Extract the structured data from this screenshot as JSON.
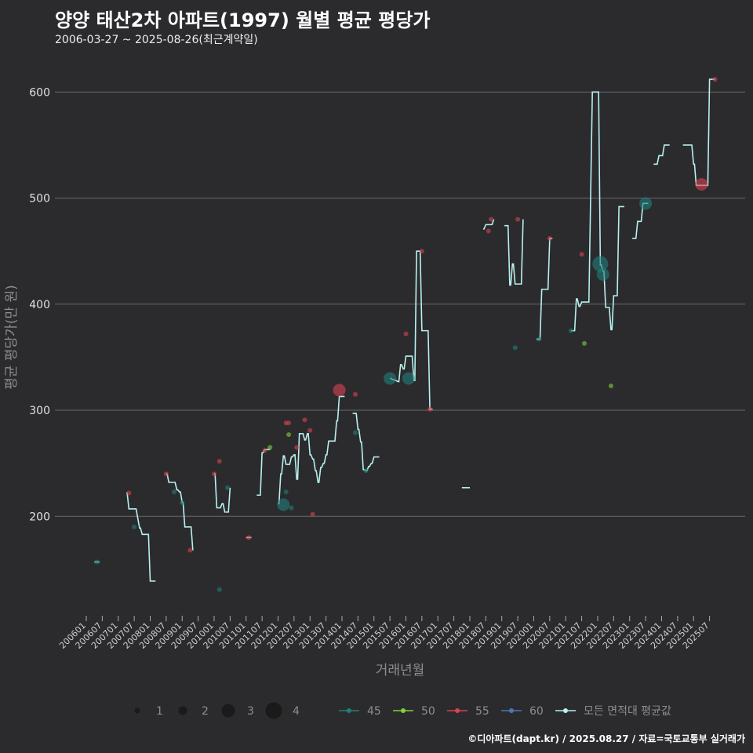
{
  "title": "양양 태산2차 아파트(1997) 월별 평균 평당가",
  "subtitle": "2006-03-27 ~ 2025-08-26(최근계약일)",
  "caption": "©디아파트(dapt.kr) / 2025.08.27 / 자료=국토교통부 실거래가",
  "colors": {
    "background": "#2b2b2d",
    "grid": "#6a6a6a",
    "s45": "#1f7f7a",
    "s50": "#7fcf3f",
    "s55": "#d9424f",
    "s60": "#4a78b5",
    "avg": "#b8f0f0"
  },
  "chart_data": {
    "type": "line",
    "xlabel": "거래년월",
    "ylabel": "평균 평당가(만 원)",
    "ylim": [
      110,
      635
    ],
    "yticks": [
      200,
      300,
      400,
      500,
      600
    ],
    "x_start": "2006-01",
    "x_end": "2025-08",
    "x_tick_labels": [
      "200601",
      "200607",
      "200701",
      "200707",
      "200801",
      "200807",
      "200901",
      "200907",
      "201001",
      "201007",
      "201101",
      "201107",
      "201201",
      "201207",
      "201301",
      "201307",
      "201401",
      "201407",
      "201501",
      "201507",
      "201601",
      "201607",
      "201701",
      "201707",
      "201801",
      "201807",
      "201901",
      "201907",
      "202001",
      "202007",
      "202101",
      "202107",
      "202201",
      "202207",
      "202301",
      "202307",
      "202401",
      "202407",
      "202501",
      "202507"
    ],
    "avg_segments": [
      [
        [
          3,
          157
        ],
        [
          5,
          157
        ]
      ],
      [
        [
          15,
          222
        ],
        [
          16,
          207
        ],
        [
          18,
          207
        ],
        [
          20,
          189
        ],
        [
          21,
          183
        ],
        [
          23,
          183
        ],
        [
          24,
          139
        ],
        [
          26,
          139
        ]
      ],
      [
        [
          30,
          240
        ],
        [
          31,
          232
        ],
        [
          33,
          232
        ],
        [
          34,
          225
        ],
        [
          35,
          223
        ],
        [
          36,
          213
        ],
        [
          37,
          190
        ],
        [
          39,
          190
        ],
        [
          40,
          168
        ]
      ],
      [
        [
          48,
          240
        ],
        [
          49,
          208
        ],
        [
          50,
          208
        ],
        [
          51,
          212
        ],
        [
          52,
          204
        ],
        [
          53,
          204
        ],
        [
          54,
          227
        ]
      ],
      [
        [
          60,
          180
        ],
        [
          62,
          180
        ]
      ],
      [
        [
          64,
          220
        ],
        [
          65,
          220
        ],
        [
          66,
          260
        ],
        [
          67,
          263
        ],
        [
          69,
          263
        ]
      ],
      [
        [
          72,
          212
        ],
        [
          73,
          240
        ],
        [
          74,
          257
        ],
        [
          75,
          249
        ],
        [
          76,
          249
        ],
        [
          77,
          256
        ],
        [
          78,
          258
        ],
        [
          79,
          235
        ],
        [
          80,
          278
        ],
        [
          81,
          278
        ],
        [
          82,
          272
        ],
        [
          83,
          278
        ],
        [
          84,
          258
        ],
        [
          85,
          254
        ],
        [
          86,
          243
        ],
        [
          87,
          232
        ],
        [
          88,
          246
        ],
        [
          89,
          250
        ],
        [
          90,
          258
        ],
        [
          91,
          271
        ],
        [
          93,
          271
        ],
        [
          94,
          290
        ],
        [
          95,
          313
        ],
        [
          97,
          313
        ]
      ],
      [
        [
          100,
          297
        ],
        [
          101,
          297
        ],
        [
          102,
          282
        ],
        [
          103,
          270
        ],
        [
          104,
          244
        ],
        [
          105,
          243
        ],
        [
          106,
          247
        ],
        [
          107,
          250
        ],
        [
          108,
          256
        ],
        [
          110,
          256
        ]
      ],
      [
        [
          114,
          330
        ],
        [
          115,
          329
        ],
        [
          116,
          328
        ],
        [
          117,
          327
        ],
        [
          118,
          343
        ],
        [
          119,
          339
        ],
        [
          120,
          351
        ],
        [
          121,
          351
        ],
        [
          122,
          351
        ],
        [
          123,
          328
        ],
        [
          124,
          450
        ],
        [
          125,
          450
        ],
        [
          126,
          375
        ],
        [
          128,
          375
        ],
        [
          129,
          301
        ],
        [
          130,
          301
        ]
      ],
      [
        [
          141,
          227
        ],
        [
          144,
          227
        ]
      ],
      [
        [
          149,
          471
        ],
        [
          150,
          475
        ],
        [
          152,
          475
        ],
        [
          153,
          480
        ]
      ],
      [
        [
          157,
          474
        ],
        [
          158,
          474
        ],
        [
          159,
          418
        ],
        [
          160,
          438
        ],
        [
          161,
          419
        ],
        [
          162,
          419
        ],
        [
          163,
          419
        ],
        [
          164,
          480
        ]
      ],
      [
        [
          169,
          367
        ],
        [
          170,
          367
        ],
        [
          171,
          414
        ],
        [
          173,
          414
        ],
        [
          174,
          462
        ],
        [
          175,
          462
        ]
      ],
      [
        [
          182,
          375
        ],
        [
          183,
          375
        ],
        [
          184,
          405
        ],
        [
          185,
          398
        ],
        [
          186,
          402
        ],
        [
          188,
          402
        ],
        [
          190,
          600
        ],
        [
          192,
          600
        ],
        [
          193,
          437
        ],
        [
          194,
          431
        ],
        [
          195,
          397
        ],
        [
          196,
          397
        ],
        [
          197,
          376
        ],
        [
          198,
          408
        ],
        [
          199,
          408
        ],
        [
          200,
          492
        ],
        [
          202,
          492
        ]
      ],
      [
        [
          205,
          462
        ],
        [
          206,
          462
        ],
        [
          207,
          478
        ],
        [
          208,
          478
        ],
        [
          209,
          495
        ],
        [
          211,
          495
        ]
      ],
      [
        [
          213,
          532
        ],
        [
          214,
          532
        ],
        [
          215,
          540
        ],
        [
          216,
          540
        ],
        [
          217,
          550
        ],
        [
          219,
          550
        ]
      ],
      [
        [
          224,
          550
        ],
        [
          227,
          550
        ],
        [
          228,
          532
        ],
        [
          229,
          512
        ],
        [
          233,
          512
        ],
        [
          234,
          612
        ],
        [
          236,
          612
        ]
      ]
    ],
    "scatter_points": [
      {
        "s": "45",
        "m": 4,
        "v": 157,
        "n": 1
      },
      {
        "s": "55",
        "m": 16,
        "v": 222,
        "n": 1
      },
      {
        "s": "45",
        "m": 18,
        "v": 190,
        "n": 1
      },
      {
        "s": "55",
        "m": 30,
        "v": 240,
        "n": 1
      },
      {
        "s": "45",
        "m": 33,
        "v": 223,
        "n": 1
      },
      {
        "s": "45",
        "m": 36,
        "v": 213,
        "n": 1
      },
      {
        "s": "55",
        "m": 39,
        "v": 168,
        "n": 1
      },
      {
        "s": "55",
        "m": 48,
        "v": 240,
        "n": 1
      },
      {
        "s": "55",
        "m": 50,
        "v": 252,
        "n": 1
      },
      {
        "s": "45",
        "m": 50,
        "v": 131,
        "n": 1
      },
      {
        "s": "45",
        "m": 53,
        "v": 227,
        "n": 1
      },
      {
        "s": "55",
        "m": 61,
        "v": 180,
        "n": 1
      },
      {
        "s": "55",
        "m": 67,
        "v": 262,
        "n": 1
      },
      {
        "s": "50",
        "m": 69,
        "v": 265,
        "n": 1
      },
      {
        "s": "45",
        "m": 74,
        "v": 211,
        "n": 3
      },
      {
        "s": "45",
        "m": 75,
        "v": 223,
        "n": 1
      },
      {
        "s": "55",
        "m": 75,
        "v": 288,
        "n": 1
      },
      {
        "s": "55",
        "m": 76,
        "v": 288,
        "n": 1
      },
      {
        "s": "50",
        "m": 76,
        "v": 277,
        "n": 1
      },
      {
        "s": "45",
        "m": 77,
        "v": 208,
        "n": 1
      },
      {
        "s": "55",
        "m": 79,
        "v": 265,
        "n": 1
      },
      {
        "s": "55",
        "m": 82,
        "v": 291,
        "n": 1
      },
      {
        "s": "55",
        "m": 84,
        "v": 281,
        "n": 1
      },
      {
        "s": "55",
        "m": 85,
        "v": 202,
        "n": 1
      },
      {
        "s": "55",
        "m": 95,
        "v": 319,
        "n": 3
      },
      {
        "s": "55",
        "m": 101,
        "v": 315,
        "n": 1
      },
      {
        "s": "45",
        "m": 101,
        "v": 279,
        "n": 1
      },
      {
        "s": "45",
        "m": 105,
        "v": 243,
        "n": 1
      },
      {
        "s": "45",
        "m": 114,
        "v": 330,
        "n": 3
      },
      {
        "s": "45",
        "m": 121,
        "v": 330,
        "n": 3
      },
      {
        "s": "55",
        "m": 120,
        "v": 372,
        "n": 1
      },
      {
        "s": "55",
        "m": 126,
        "v": 450,
        "n": 1
      },
      {
        "s": "55",
        "m": 129,
        "v": 301,
        "n": 1
      },
      {
        "s": "55",
        "m": 151,
        "v": 469,
        "n": 1
      },
      {
        "s": "55",
        "m": 152,
        "v": 480,
        "n": 1
      },
      {
        "s": "55",
        "m": 162,
        "v": 480,
        "n": 1
      },
      {
        "s": "45",
        "m": 161,
        "v": 359,
        "n": 1
      },
      {
        "s": "45",
        "m": 170,
        "v": 367,
        "n": 1
      },
      {
        "s": "55",
        "m": 174,
        "v": 462,
        "n": 1
      },
      {
        "s": "45",
        "m": 182,
        "v": 375,
        "n": 1
      },
      {
        "s": "55",
        "m": 186,
        "v": 447,
        "n": 1
      },
      {
        "s": "50",
        "m": 187,
        "v": 363,
        "n": 1
      },
      {
        "s": "45",
        "m": 193,
        "v": 438,
        "n": 4
      },
      {
        "s": "45",
        "m": 194,
        "v": 428,
        "n": 3
      },
      {
        "s": "50",
        "m": 197,
        "v": 323,
        "n": 1
      },
      {
        "s": "45",
        "m": 210,
        "v": 495,
        "n": 3
      },
      {
        "s": "55",
        "m": 231,
        "v": 513,
        "n": 3
      },
      {
        "s": "55",
        "m": 236,
        "v": 612,
        "n": 1
      }
    ]
  },
  "legend": {
    "size_items": [
      {
        "label": "1",
        "n": 1
      },
      {
        "label": "2",
        "n": 2
      },
      {
        "label": "3",
        "n": 3
      },
      {
        "label": "4",
        "n": 4
      }
    ],
    "color_items": [
      {
        "label": "45",
        "key": "s45"
      },
      {
        "label": "50",
        "key": "s50"
      },
      {
        "label": "55",
        "key": "s55"
      },
      {
        "label": "60",
        "key": "s60"
      },
      {
        "label": "모든 면적대 평균값",
        "key": "avg"
      }
    ]
  }
}
